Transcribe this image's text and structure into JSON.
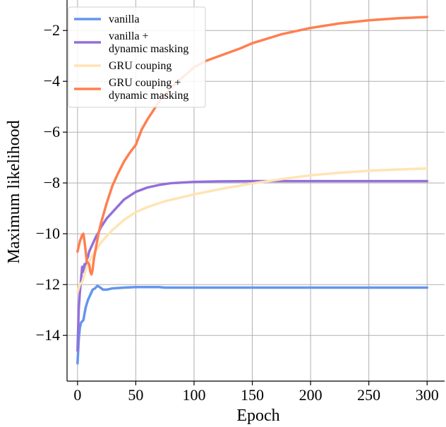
{
  "chart_data": {
    "type": "line",
    "title": "",
    "xlabel": "Epoch",
    "ylabel": "Maximum likelihood",
    "xlim": [
      -9,
      315
    ],
    "ylim": [
      -15.8,
      -0.8
    ],
    "xticks": [
      0,
      50,
      100,
      150,
      200,
      250,
      300
    ],
    "yticks": [
      -14,
      -12,
      -10,
      -8,
      -6,
      -4,
      -2
    ],
    "grid": true,
    "legend_position": "top-left",
    "series": [
      {
        "name": "vanilla",
        "legend_lines": [
          "vanilla"
        ],
        "color": "#6495ED",
        "x": [
          0,
          1,
          2,
          3,
          5,
          7,
          9,
          11,
          13,
          15,
          17,
          19,
          22,
          25,
          30,
          40,
          50,
          60,
          70,
          75,
          80,
          100,
          150,
          200,
          250,
          300
        ],
        "y": [
          -15.1,
          -14.2,
          -13.7,
          -13.5,
          -13.4,
          -12.9,
          -12.6,
          -12.4,
          -12.2,
          -12.15,
          -12.05,
          -12.1,
          -12.2,
          -12.2,
          -12.15,
          -12.12,
          -12.1,
          -12.1,
          -12.1,
          -12.12,
          -12.12,
          -12.12,
          -12.12,
          -12.12,
          -12.12,
          -12.12
        ]
      },
      {
        "name": "vanilla + dynamic masking",
        "legend_lines": [
          "vanilla +",
          "dynamic masking"
        ],
        "color": "#9370DB",
        "x": [
          0,
          1,
          2,
          3,
          4,
          5,
          6,
          7,
          8,
          9,
          10,
          12,
          14,
          16,
          18,
          20,
          25,
          30,
          35,
          40,
          45,
          50,
          60,
          70,
          80,
          100,
          120,
          150,
          200,
          250,
          300
        ],
        "y": [
          -14.6,
          -13.0,
          -12.3,
          -11.8,
          -11.3,
          -11.5,
          -11.2,
          -11.4,
          -11.0,
          -10.9,
          -10.7,
          -10.5,
          -10.3,
          -10.1,
          -9.95,
          -9.75,
          -9.4,
          -9.15,
          -8.9,
          -8.65,
          -8.5,
          -8.35,
          -8.18,
          -8.08,
          -8.01,
          -7.96,
          -7.94,
          -7.93,
          -7.93,
          -7.93,
          -7.93
        ]
      },
      {
        "name": "GRU couping",
        "legend_lines": [
          "GRU couping"
        ],
        "color": "#FFE4B5",
        "x": [
          0,
          2,
          4,
          6,
          8,
          10,
          12,
          15,
          18,
          20,
          25,
          30,
          40,
          50,
          60,
          75,
          100,
          125,
          150,
          175,
          200,
          225,
          250,
          275,
          300
        ],
        "y": [
          -12.3,
          -12.0,
          -11.9,
          -11.6,
          -11.3,
          -11.1,
          -10.9,
          -10.7,
          -10.5,
          -10.35,
          -10.1,
          -9.85,
          -9.45,
          -9.15,
          -8.95,
          -8.72,
          -8.45,
          -8.22,
          -8.02,
          -7.85,
          -7.7,
          -7.6,
          -7.52,
          -7.47,
          -7.43
        ]
      },
      {
        "name": "GRU couping + dynamic masking",
        "legend_lines": [
          "GRU couping +",
          "dynamic masking"
        ],
        "color": "#FF7F50",
        "x": [
          0,
          2,
          4,
          5,
          6,
          8,
          10,
          11,
          12,
          13,
          14,
          16,
          18,
          20,
          25,
          30,
          35,
          40,
          45,
          50,
          55,
          60,
          70,
          80,
          90,
          100,
          110,
          125,
          140,
          150,
          175,
          200,
          225,
          250,
          275,
          300
        ],
        "y": [
          -10.7,
          -10.3,
          -10.05,
          -10.0,
          -10.3,
          -11.1,
          -11.2,
          -11.5,
          -11.6,
          -11.4,
          -11.0,
          -10.5,
          -10.0,
          -9.6,
          -8.8,
          -8.1,
          -7.6,
          -7.15,
          -6.8,
          -6.5,
          -5.9,
          -5.5,
          -4.8,
          -4.25,
          -3.85,
          -3.45,
          -3.2,
          -2.95,
          -2.7,
          -2.5,
          -2.15,
          -1.9,
          -1.72,
          -1.6,
          -1.52,
          -1.47
        ]
      }
    ]
  }
}
